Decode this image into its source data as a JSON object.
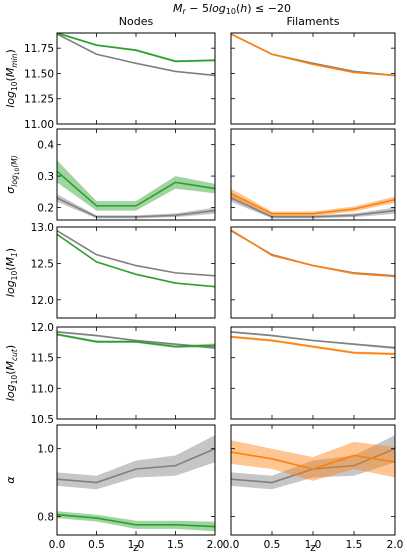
{
  "figure": {
    "suptitle": "M_r − 5log10(h) ≤ −20",
    "column_titles": [
      "Nodes",
      "Filaments"
    ],
    "xlabel": "z",
    "x_ticks": [
      "0.0",
      "0.5",
      "1.0",
      "1.5",
      "2.0"
    ]
  },
  "colors": {
    "reference": "#808080",
    "nodes": "#2ca02c",
    "filaments": "#ff7f0e"
  },
  "chart_data": [
    {
      "type": "line",
      "row": 0,
      "col": 0,
      "panel": "nodes-log-mmin",
      "ylabel": "log10(M_min)",
      "ylim": [
        11.0,
        11.9
      ],
      "y_ticks": [
        {
          "v": 11.0,
          "t": "11.00"
        },
        {
          "v": 11.25,
          "t": "11.25"
        },
        {
          "v": 11.5,
          "t": "11.50"
        },
        {
          "v": 11.75,
          "t": "11.75"
        }
      ],
      "x": [
        0,
        0.5,
        1.0,
        1.5,
        2.0
      ],
      "series": [
        {
          "kind": "reference",
          "values": [
            11.89,
            11.69,
            11.6,
            11.52,
            11.48
          ],
          "err": [
            0.005,
            0.005,
            0.005,
            0.005,
            0.005
          ]
        },
        {
          "kind": "sample",
          "values": [
            11.9,
            11.78,
            11.73,
            11.62,
            11.63
          ],
          "err": [
            0.01,
            0.01,
            0.01,
            0.01,
            0.01
          ]
        }
      ]
    },
    {
      "type": "line",
      "row": 0,
      "col": 1,
      "panel": "filaments-log-mmin",
      "ylim": [
        11.0,
        11.9
      ],
      "x": [
        0,
        0.5,
        1.0,
        1.5,
        2.0
      ],
      "series": [
        {
          "kind": "reference",
          "values": [
            11.89,
            11.69,
            11.6,
            11.52,
            11.48
          ],
          "err": [
            0.005,
            0.005,
            0.005,
            0.005,
            0.005
          ]
        },
        {
          "kind": "sample",
          "values": [
            11.89,
            11.69,
            11.59,
            11.51,
            11.48
          ],
          "err": [
            0.006,
            0.006,
            0.006,
            0.006,
            0.006
          ]
        }
      ]
    },
    {
      "type": "line",
      "row": 1,
      "col": 0,
      "panel": "nodes-sigma-logm",
      "ylabel": "σ log10(M)",
      "ylim": [
        0.16,
        0.45
      ],
      "y_ticks": [
        {
          "v": 0.2,
          "t": "0.2"
        },
        {
          "v": 0.3,
          "t": "0.3"
        },
        {
          "v": 0.4,
          "t": "0.4"
        }
      ],
      "x": [
        0,
        0.5,
        1.0,
        1.5,
        2.0
      ],
      "series": [
        {
          "kind": "reference",
          "values": [
            0.23,
            0.17,
            0.17,
            0.175,
            0.19
          ],
          "err": [
            0.012,
            0.005,
            0.005,
            0.006,
            0.01
          ]
        },
        {
          "kind": "sample",
          "values": [
            0.315,
            0.205,
            0.205,
            0.28,
            0.26
          ],
          "err": [
            0.035,
            0.015,
            0.015,
            0.02,
            0.015
          ]
        }
      ]
    },
    {
      "type": "line",
      "row": 1,
      "col": 1,
      "panel": "filaments-sigma-logm",
      "ylim": [
        0.16,
        0.45
      ],
      "x": [
        0,
        0.5,
        1.0,
        1.5,
        2.0
      ],
      "series": [
        {
          "kind": "reference",
          "values": [
            0.23,
            0.17,
            0.17,
            0.175,
            0.19
          ],
          "err": [
            0.012,
            0.005,
            0.005,
            0.006,
            0.01
          ]
        },
        {
          "kind": "sample",
          "values": [
            0.245,
            0.18,
            0.18,
            0.195,
            0.225
          ],
          "err": [
            0.015,
            0.007,
            0.007,
            0.008,
            0.01
          ]
        }
      ]
    },
    {
      "type": "line",
      "row": 2,
      "col": 0,
      "panel": "nodes-log-m1",
      "ylabel": "log10(M_1)",
      "ylim": [
        11.75,
        13.0
      ],
      "y_ticks": [
        {
          "v": 12.0,
          "t": "12.0"
        },
        {
          "v": 12.5,
          "t": "12.5"
        },
        {
          "v": 13.0,
          "t": "13.0"
        }
      ],
      "x": [
        0,
        0.5,
        1.0,
        1.5,
        2.0
      ],
      "series": [
        {
          "kind": "reference",
          "values": [
            12.95,
            12.62,
            12.47,
            12.37,
            12.33
          ],
          "err": [
            0.006,
            0.006,
            0.006,
            0.006,
            0.006
          ]
        },
        {
          "kind": "sample",
          "values": [
            12.9,
            12.52,
            12.35,
            12.23,
            12.18
          ],
          "err": [
            0.008,
            0.008,
            0.008,
            0.008,
            0.008
          ]
        }
      ]
    },
    {
      "type": "line",
      "row": 2,
      "col": 1,
      "panel": "filaments-log-m1",
      "ylim": [
        11.75,
        13.0
      ],
      "x": [
        0,
        0.5,
        1.0,
        1.5,
        2.0
      ],
      "series": [
        {
          "kind": "reference",
          "values": [
            12.95,
            12.62,
            12.47,
            12.37,
            12.33
          ],
          "err": [
            0.006,
            0.006,
            0.006,
            0.006,
            0.006
          ]
        },
        {
          "kind": "sample",
          "values": [
            12.96,
            12.61,
            12.47,
            12.36,
            12.32
          ],
          "err": [
            0.008,
            0.008,
            0.008,
            0.008,
            0.008
          ]
        }
      ]
    },
    {
      "type": "line",
      "row": 3,
      "col": 0,
      "panel": "nodes-log-mcut",
      "ylabel": "log10(M_cut)",
      "ylim": [
        10.5,
        12.0
      ],
      "y_ticks": [
        {
          "v": 10.5,
          "t": "10.5"
        },
        {
          "v": 11.0,
          "t": "11.0"
        },
        {
          "v": 11.5,
          "t": "11.5"
        },
        {
          "v": 12.0,
          "t": "12.0"
        }
      ],
      "x": [
        0,
        0.5,
        1.0,
        1.5,
        2.0
      ],
      "series": [
        {
          "kind": "reference",
          "values": [
            11.92,
            11.86,
            11.78,
            11.72,
            11.66
          ],
          "err": [
            0.015,
            0.015,
            0.015,
            0.015,
            0.02
          ]
        },
        {
          "kind": "sample",
          "values": [
            11.88,
            11.76,
            11.76,
            11.68,
            11.7
          ],
          "err": [
            0.02,
            0.02,
            0.02,
            0.02,
            0.03
          ]
        }
      ]
    },
    {
      "type": "line",
      "row": 3,
      "col": 1,
      "panel": "filaments-log-mcut",
      "ylim": [
        10.5,
        12.0
      ],
      "x": [
        0,
        0.5,
        1.0,
        1.5,
        2.0
      ],
      "series": [
        {
          "kind": "reference",
          "values": [
            11.92,
            11.86,
            11.78,
            11.72,
            11.66
          ],
          "err": [
            0.015,
            0.015,
            0.015,
            0.015,
            0.02
          ]
        },
        {
          "kind": "sample",
          "values": [
            11.84,
            11.78,
            11.68,
            11.58,
            11.56
          ],
          "err": [
            0.02,
            0.02,
            0.02,
            0.02,
            0.02
          ]
        }
      ]
    },
    {
      "type": "line",
      "row": 4,
      "col": 0,
      "panel": "nodes-alpha",
      "ylabel": "α",
      "ylim": [
        0.745,
        1.07
      ],
      "y_ticks": [
        {
          "v": 0.8,
          "t": "0.8"
        },
        {
          "v": 1.0,
          "t": "1.0"
        }
      ],
      "x": [
        0,
        0.5,
        1.0,
        1.5,
        2.0
      ],
      "series": [
        {
          "kind": "reference",
          "values": [
            0.91,
            0.9,
            0.94,
            0.95,
            1.0
          ],
          "err": [
            0.02,
            0.02,
            0.025,
            0.03,
            0.04
          ]
        },
        {
          "kind": "sample",
          "values": [
            0.805,
            0.795,
            0.775,
            0.775,
            0.77
          ],
          "err": [
            0.01,
            0.01,
            0.012,
            0.012,
            0.014
          ]
        }
      ]
    },
    {
      "type": "line",
      "row": 4,
      "col": 1,
      "panel": "filaments-alpha",
      "ylim": [
        0.745,
        1.07
      ],
      "x": [
        0,
        0.5,
        1.0,
        1.5,
        2.0
      ],
      "series": [
        {
          "kind": "reference",
          "values": [
            0.91,
            0.9,
            0.94,
            0.95,
            1.0
          ],
          "err": [
            0.02,
            0.02,
            0.025,
            0.03,
            0.04
          ]
        },
        {
          "kind": "sample",
          "values": [
            0.99,
            0.97,
            0.94,
            0.98,
            0.96
          ],
          "err": [
            0.035,
            0.03,
            0.035,
            0.04,
            0.045
          ]
        }
      ]
    }
  ]
}
